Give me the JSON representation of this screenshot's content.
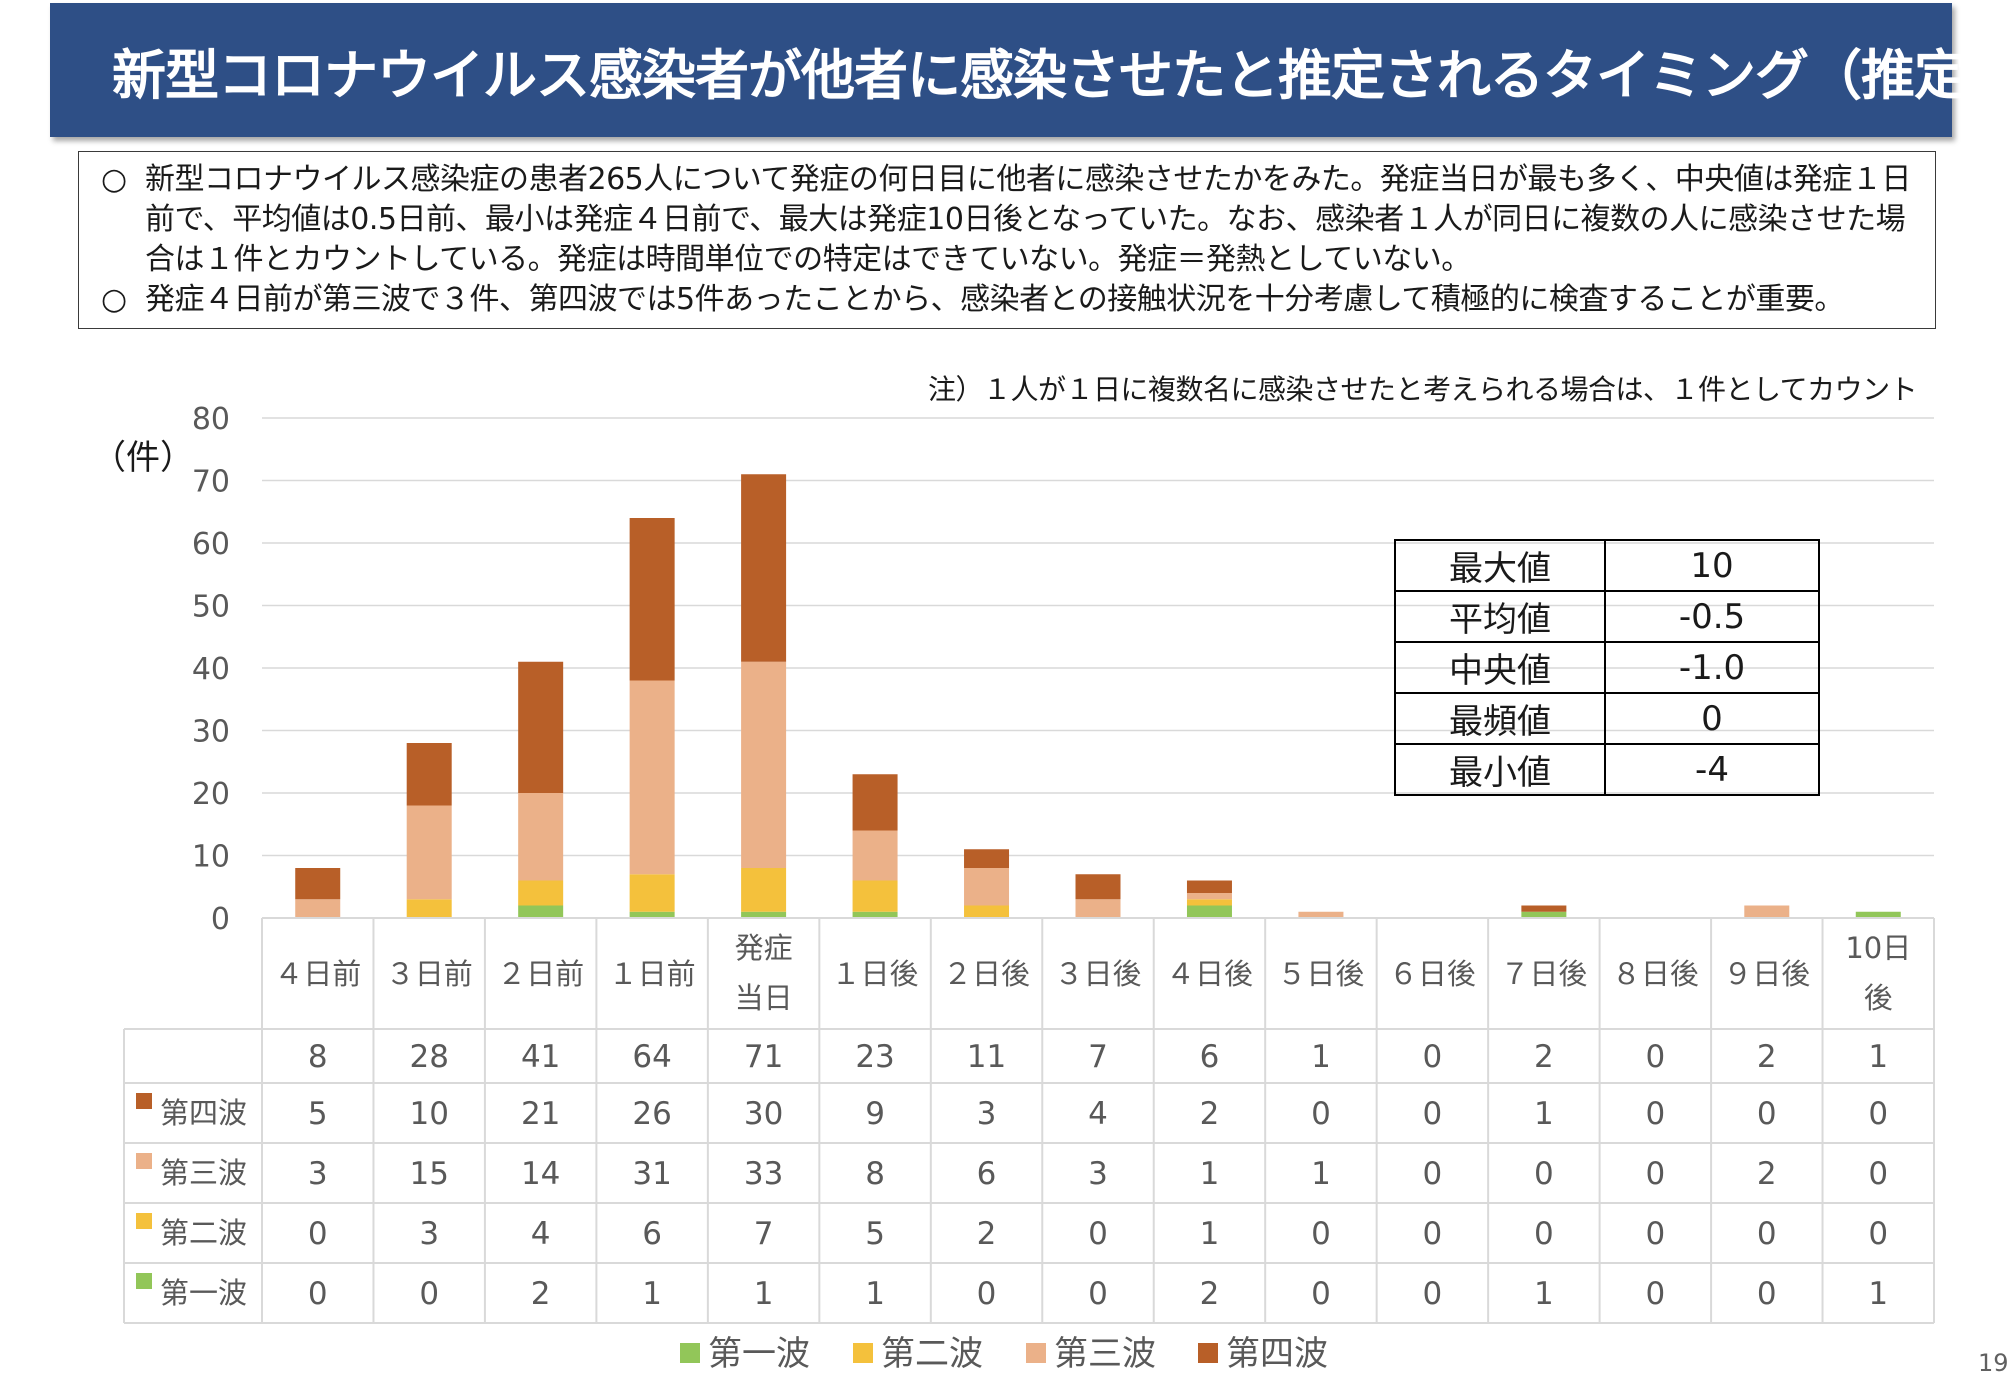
{
  "title": "新型コロナウイルス感染者が他者に感染させたと推定されるタイミング（推定）",
  "summary": [
    {
      "marker": "○",
      "text": "新型コロナウイルス感染症の患者265人について発症の何日目に他者に感染させたかをみた。発症当日が最も多く、中央値は発症１日前で、平均値は0.5日前、最小は発症４日前で、最大は発症10日後となっていた。なお、感染者１人が同日に複数の人に感染させた場合は１件とカウントしている。発症は時間単位での特定はできていない。発症＝発熱としていない。"
    },
    {
      "marker": "○",
      "text": "発症４日前が第三波で３件、第四波では5件あったことから、感染者との接触状況を十分考慮して積極的に検査することが重要。"
    }
  ],
  "note": "注）１人が１日に複数名に感染させたと考えられる場合は、１件としてカウント",
  "unit_label": "（件）",
  "page_number": "19",
  "stats_table": [
    {
      "label": "最大値",
      "value": "10"
    },
    {
      "label": "平均値",
      "value": "-0.5"
    },
    {
      "label": "中央値",
      "value": "-1.0"
    },
    {
      "label": "最頻値",
      "value": "0"
    },
    {
      "label": "最小値",
      "value": "-4"
    }
  ],
  "chart_data": {
    "type": "bar",
    "stacked": true,
    "categories": [
      "４日前",
      "３日前",
      "２日前",
      "１日前",
      "発症当日",
      "１日後",
      "２日後",
      "３日後",
      "４日後",
      "５日後",
      "６日後",
      "７日後",
      "８日後",
      "９日後",
      "10日後"
    ],
    "totals": [
      "8",
      "28",
      "41",
      "64",
      "71",
      "23",
      "11",
      "7",
      "6",
      "1",
      "0",
      "2",
      "0",
      "2",
      "1"
    ],
    "series": [
      {
        "name": "第一波",
        "color": "#92c659",
        "values": [
          0,
          0,
          2,
          1,
          1,
          1,
          0,
          0,
          2,
          0,
          0,
          1,
          0,
          0,
          1
        ]
      },
      {
        "name": "第二波",
        "color": "#f4c13c",
        "values": [
          0,
          3,
          4,
          6,
          7,
          5,
          2,
          0,
          1,
          0,
          0,
          0,
          0,
          0,
          0
        ]
      },
      {
        "name": "第三波",
        "color": "#ebb189",
        "values": [
          3,
          15,
          14,
          31,
          33,
          8,
          6,
          3,
          1,
          1,
          0,
          0,
          0,
          2,
          0
        ]
      },
      {
        "name": "第四波",
        "color": "#b85f28",
        "values": [
          5,
          10,
          21,
          26,
          30,
          9,
          3,
          4,
          2,
          0,
          0,
          1,
          0,
          0,
          0
        ]
      }
    ],
    "table_row_order": [
      "第四波",
      "第三波",
      "第二波",
      "第一波"
    ],
    "ylim": [
      0,
      80
    ],
    "yticks": [
      0,
      10,
      20,
      30,
      40,
      50,
      60,
      70,
      80
    ],
    "grid": true,
    "legend": "bottom"
  }
}
